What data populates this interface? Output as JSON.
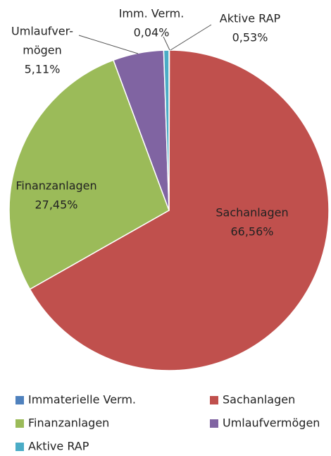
{
  "chart_data": {
    "type": "pie",
    "series": [
      {
        "name": "Immaterielle Verm.",
        "label": [
          "Imm. Verm."
        ],
        "color": "#4f81bd",
        "value": 0.04,
        "value_label": "0,04%"
      },
      {
        "name": "Sachanlagen",
        "label": [
          "Sachanlagen"
        ],
        "color": "#c0504d",
        "value": 66.56,
        "value_label": "66,56%"
      },
      {
        "name": "Finanzanlagen",
        "label": [
          "Finanzanlagen"
        ],
        "color": "#9bbb59",
        "value": 27.45,
        "value_label": "27,45%"
      },
      {
        "name": "Umlaufvermögen",
        "label": [
          "Umlaufver-",
          "mögen"
        ],
        "color": "#8064a2",
        "value": 5.11,
        "value_label": "5,11%"
      },
      {
        "name": "Aktive RAP",
        "label": [
          "Aktive RAP"
        ],
        "color": "#4bacc6",
        "value": 0.53,
        "value_label": "0,53%"
      }
    ],
    "legend": "bottom"
  }
}
